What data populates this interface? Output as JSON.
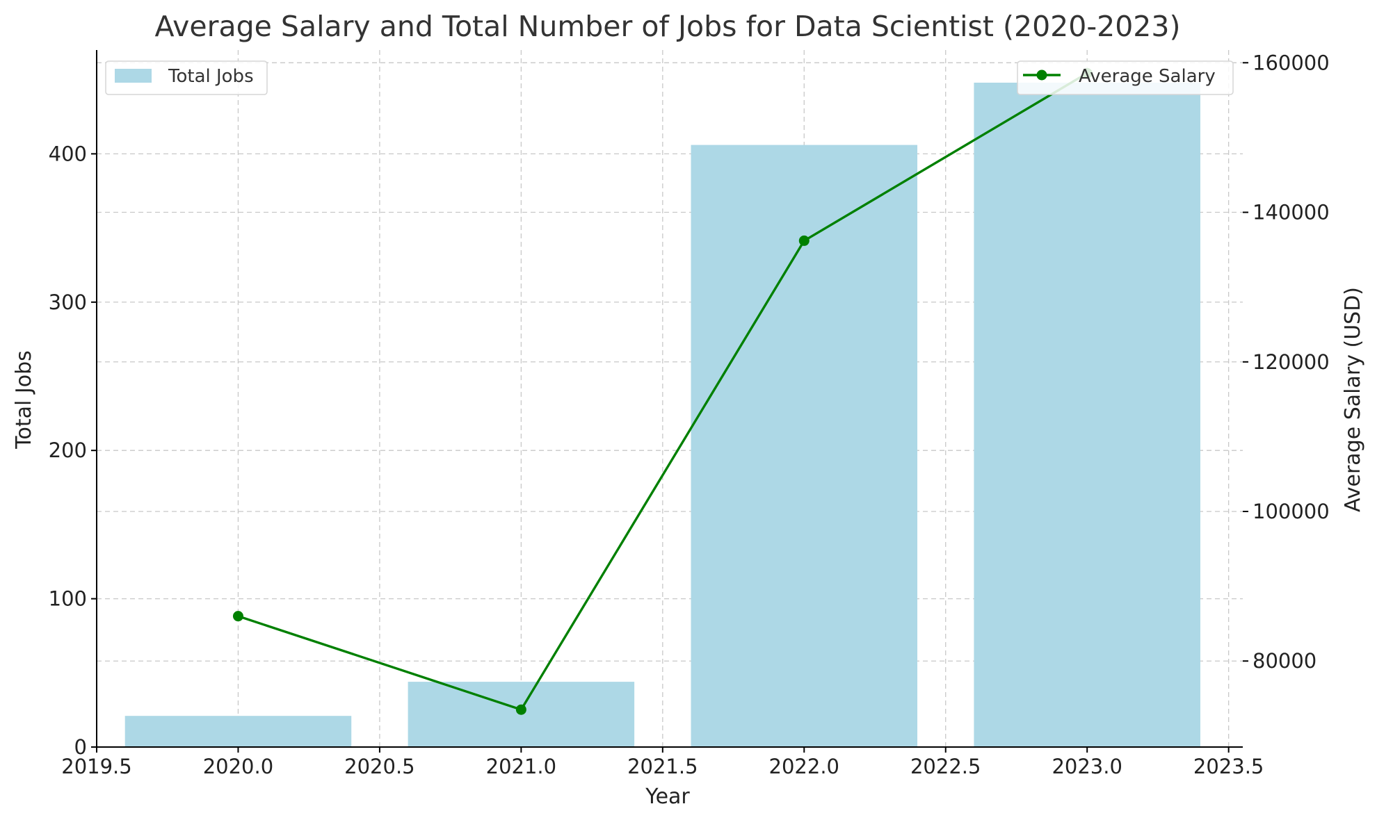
{
  "chart_data": {
    "type": "bar+line",
    "title": "Average Salary and Total Number of Jobs for Data Scientist (2020-2023)",
    "xlabel": "Year",
    "ylabel_left": "Total Jobs",
    "ylabel_right": "Average Salary (USD)",
    "x": [
      2020,
      2021,
      2022,
      2023
    ],
    "xlim": [
      2019.5,
      2023.55
    ],
    "x_ticks": [
      2019.5,
      2020.0,
      2020.5,
      2021.0,
      2021.5,
      2022.0,
      2022.5,
      2023.0,
      2023.5
    ],
    "x_tick_labels": [
      "2019.5",
      "2020.0",
      "2020.5",
      "2021.0",
      "2021.5",
      "2022.0",
      "2022.5",
      "2023.0",
      "2023.5"
    ],
    "bar_width": 0.8,
    "ylim_left": [
      0,
      470
    ],
    "y_ticks_left": [
      0,
      100,
      200,
      300,
      400
    ],
    "y_tick_labels_left": [
      "0",
      "100",
      "200",
      "300",
      "400"
    ],
    "ylim_right": [
      68500,
      161700
    ],
    "y_ticks_right": [
      80000,
      100000,
      120000,
      140000,
      160000
    ],
    "y_tick_labels_right": [
      "80000",
      "100000",
      "120000",
      "140000",
      "160000"
    ],
    "grid": true,
    "series": [
      {
        "name": "Total Jobs",
        "kind": "bar",
        "axis": "left",
        "color": "#add8e6",
        "values": [
          21,
          44,
          406,
          448
        ]
      },
      {
        "name": "Average Salary",
        "kind": "line",
        "axis": "right",
        "color": "#008000",
        "marker": "circle",
        "values": [
          86000,
          73500,
          136200,
          158600
        ]
      }
    ],
    "legends": [
      {
        "series": "Total Jobs",
        "label": "Total Jobs",
        "position": "top-left"
      },
      {
        "series": "Average Salary",
        "label": "Average Salary",
        "position": "top-right"
      }
    ]
  }
}
